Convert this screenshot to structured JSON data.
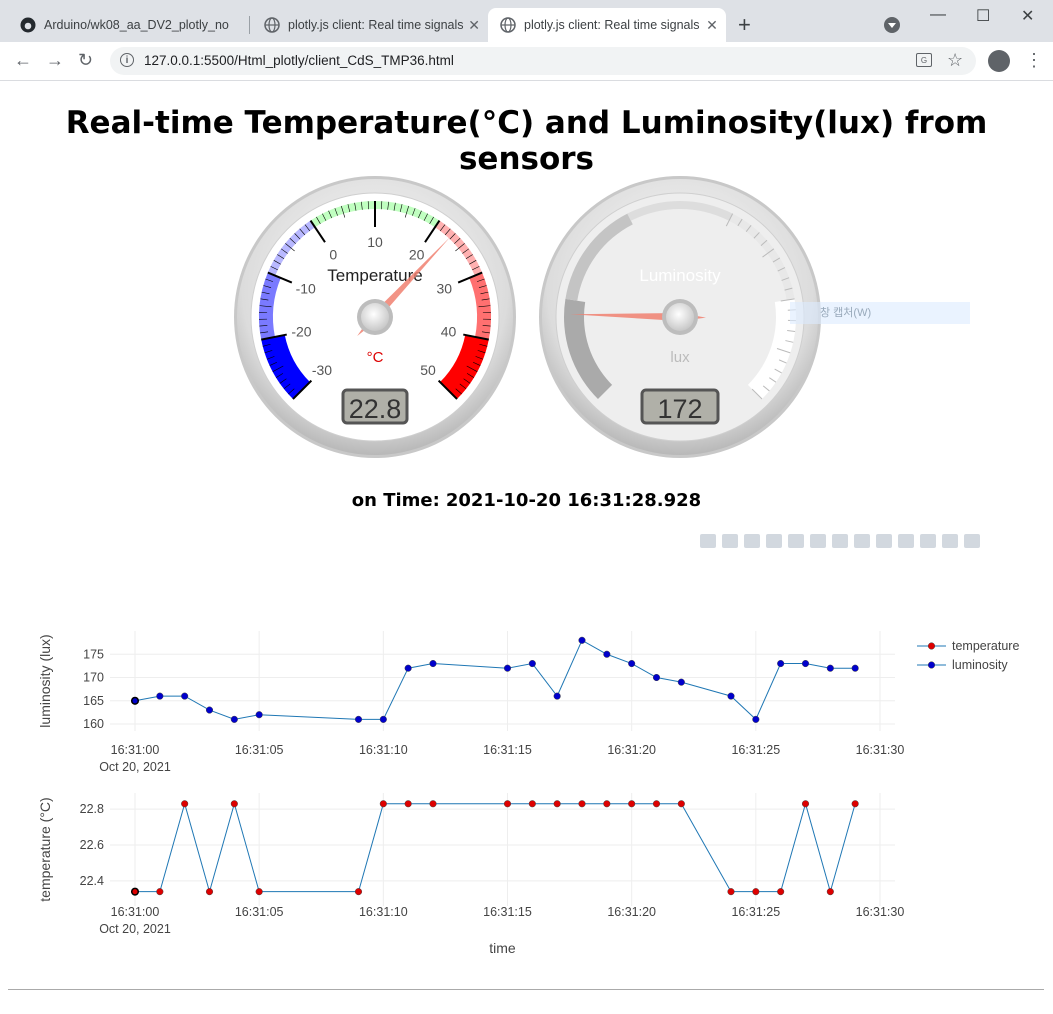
{
  "browser": {
    "tabs": [
      {
        "label": "Arduino/wk08_aa_DV2_plotly_no",
        "icon": "github-icon"
      },
      {
        "label": "plotly.js client: Real time signals",
        "icon": "globe-icon"
      },
      {
        "label": "plotly.js client: Real time signals",
        "icon": "globe-icon",
        "active": true
      }
    ],
    "url": "127.0.0.1:5500/Html_plotly/client_CdS_TMP36.html"
  },
  "page": {
    "title": "Real-time Temperature(°C) and Luminosity(lux) from sensors",
    "time_label": "on Time:",
    "time_value": "2021-10-20 16:31:28.928"
  },
  "context_menu_ghost": "창 캡처(W)",
  "gauges": {
    "temperature": {
      "title": "Temperature",
      "units": "°C",
      "value": 22.8,
      "display": "22.8",
      "min": -30,
      "max": 50,
      "ticks": [
        "-30",
        "-20",
        "-10",
        "0",
        "10",
        "20",
        "30",
        "40",
        "50"
      ]
    },
    "luminosity": {
      "title": "Luminosity",
      "units": "lux",
      "value": 172,
      "display": "172",
      "min": 0,
      "max": 1000
    }
  },
  "chart_data": [
    {
      "type": "line",
      "name": "luminosity",
      "ylabel": "luminosity (lux)",
      "yticks": [
        160,
        165,
        170,
        175
      ],
      "ylim": [
        158.5,
        180
      ],
      "xticks": [
        "16:31:00",
        "16:31:05",
        "16:31:10",
        "16:31:15",
        "16:31:20",
        "16:31:25",
        "16:31:30"
      ],
      "xtick_sub": "Oct 20, 2021",
      "x": [
        0,
        1,
        2,
        3,
        4,
        5,
        9,
        10,
        11,
        12,
        15,
        16,
        17,
        18,
        19,
        20,
        21,
        22,
        24,
        25,
        26,
        27,
        28,
        29
      ],
      "values": [
        165,
        166,
        166,
        163,
        161,
        162,
        161,
        161,
        172,
        173,
        172,
        173,
        166,
        178,
        175,
        173,
        170,
        169,
        166,
        161,
        173,
        173,
        172,
        172
      ],
      "color": "#0000cc"
    },
    {
      "type": "line",
      "name": "temperature",
      "ylabel": "temperature (°C)",
      "xlabel": "time",
      "yticks": [
        22.4,
        22.6,
        22.8
      ],
      "ylim": [
        22.26,
        22.89
      ],
      "xticks": [
        "16:31:00",
        "16:31:05",
        "16:31:10",
        "16:31:15",
        "16:31:20",
        "16:31:25",
        "16:31:30"
      ],
      "xtick_sub": "Oct 20, 2021",
      "x": [
        0,
        1,
        2,
        3,
        4,
        5,
        9,
        10,
        11,
        12,
        15,
        16,
        17,
        18,
        19,
        20,
        21,
        22,
        24,
        25,
        26,
        27,
        28,
        29
      ],
      "values": [
        22.34,
        22.34,
        22.83,
        22.34,
        22.83,
        22.34,
        22.34,
        22.83,
        22.83,
        22.83,
        22.83,
        22.83,
        22.83,
        22.83,
        22.83,
        22.83,
        22.83,
        22.83,
        22.34,
        22.34,
        22.34,
        22.83,
        22.34,
        22.83
      ],
      "color": "#dd0000"
    }
  ],
  "legend": [
    {
      "label": "temperature",
      "color": "#dd0000"
    },
    {
      "label": "luminosity",
      "color": "#0000cc"
    }
  ]
}
